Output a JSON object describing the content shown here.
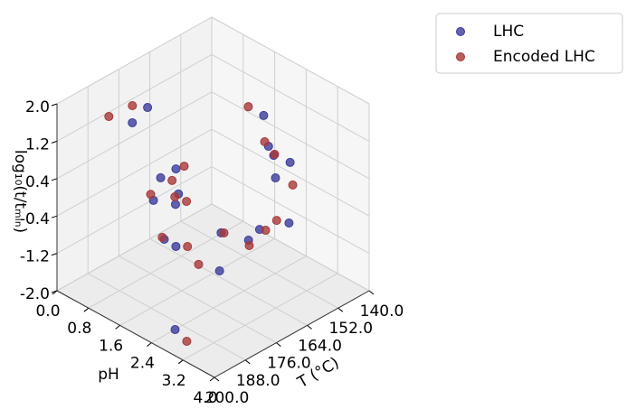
{
  "chart_data": {
    "type": "scatter3d",
    "xlabel": "T (°C)",
    "ylabel": "pH",
    "zlabel": "log₁₀(t/tₘᵢₙ)",
    "xlim": [
      140,
      200
    ],
    "ylim": [
      0,
      4
    ],
    "zlim": [
      -2,
      2
    ],
    "xticks": [
      {
        "value": 140,
        "label": "140.0"
      },
      {
        "value": 152,
        "label": "152.0"
      },
      {
        "value": 164,
        "label": "164.0"
      },
      {
        "value": 176,
        "label": "176.0"
      },
      {
        "value": 188,
        "label": "188.0"
      },
      {
        "value": 200,
        "label": "200.0"
      }
    ],
    "yticks": [
      {
        "value": 0,
        "label": "0.0"
      },
      {
        "value": 0.8,
        "label": "0.8"
      },
      {
        "value": 1.6,
        "label": "1.6"
      },
      {
        "value": 2.4,
        "label": "2.4"
      },
      {
        "value": 3.2,
        "label": "3.2"
      },
      {
        "value": 4,
        "label": "4.0"
      }
    ],
    "zticks": [
      {
        "value": -2,
        "label": "-2.0"
      },
      {
        "value": -1.2,
        "label": "-1.2"
      },
      {
        "value": -0.4,
        "label": "-0.4"
      },
      {
        "value": 0.4,
        "label": "0.4"
      },
      {
        "value": 1.2,
        "label": "1.2"
      },
      {
        "value": 2,
        "label": "2.0"
      }
    ],
    "grid": true,
    "legend": "upper right",
    "series": [
      {
        "name": "LHC",
        "color": "#3c3c9c",
        "x": [
          180.6,
          185.6,
          175.4,
          179.8,
          175.5,
          185.8,
          174.8,
          151.3,
          154.6,
          153.5,
          152.8,
          154.5,
          154.6,
          162.5,
          167.8,
          165.1,
          181.0,
          178.0,
          171.6,
          197.4
        ],
        "y": [
          1.03,
          0.97,
          1.41,
          1.31,
          1.48,
          1.52,
          1.36,
          2.06,
          2.4,
          2.46,
          2.83,
          2.57,
          2.92,
          2.69,
          2.06,
          2.58,
          1.48,
          1.58,
          2.27,
          2.83
        ],
        "z": [
          1.8,
          1.6,
          0.5,
          0.4,
          0.0,
          0.2,
          -0.3,
          1.2,
          0.8,
          0.6,
          0.6,
          0.2,
          -0.6,
          -0.6,
          -0.8,
          -0.8,
          -0.8,
          -1.0,
          -1.4,
          -1.6
        ]
      },
      {
        "name": "Encoded LHC",
        "color": "#a83838",
        "x": [
          186.3,
          184.5,
          157.7,
          157.0,
          156.2,
          174.5,
          176.9,
          182.6,
          173.3,
          177.2,
          150.4,
          157.7,
          160.0,
          167.3,
          163.6,
          180.7,
          175.8,
          175.0,
          197.6
        ],
        "y": [
          0.42,
          0.9,
          2.09,
          2.46,
          2.66,
          1.56,
          1.41,
          1.24,
          1.54,
          1.5,
          2.74,
          2.81,
          2.68,
          2.1,
          2.5,
          1.41,
          1.73,
          1.96,
          3.14
        ],
        "z": [
          1.5,
          1.9,
          1.6,
          1.0,
          0.8,
          0.6,
          0.3,
          0.1,
          -0.2,
          0.0,
          0.0,
          -0.5,
          -0.7,
          -0.8,
          -1.0,
          -0.8,
          -1.0,
          -1.3,
          -1.7
        ]
      }
    ]
  }
}
